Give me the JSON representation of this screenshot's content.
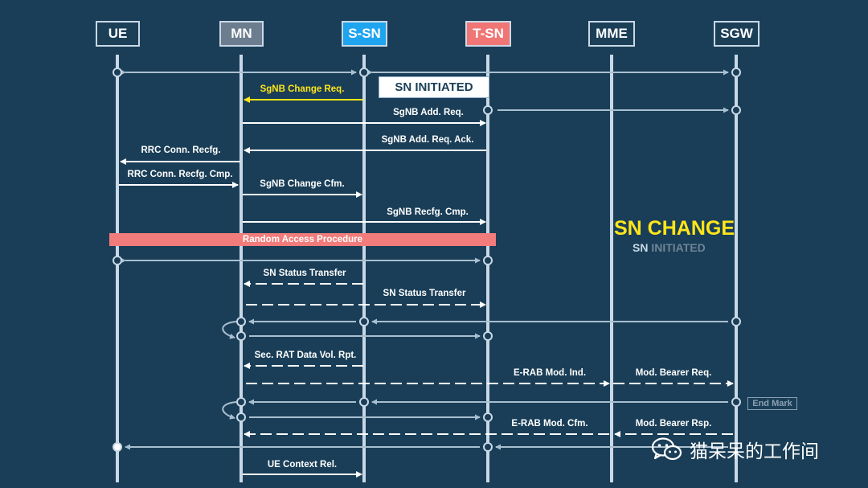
{
  "nodes": {
    "ue": "UE",
    "mn": "MN",
    "ssn": "S-SN",
    "tsn": "T-SN",
    "mme": "MME",
    "sgw": "SGW"
  },
  "colors": {
    "background": "#1a3e57",
    "ssn_box": "#1fa4f0",
    "tsn_box": "#f07575",
    "mn_box": "#6b7d8e",
    "highlight": "#ffe61a",
    "random_access": "#f27b7b",
    "user_plane": "#a9bfd0"
  },
  "badge": "SN INITIATED",
  "title": {
    "main": "SN CHANGE",
    "sub_sn": "SN",
    "sub_rest": " INITIATED"
  },
  "random_access": "Random Access Procedure",
  "end_mark": "End Mark",
  "watermark": "猫呆呆的工作间",
  "messages": {
    "sgnb_change_req": "SgNB Change Req.",
    "sgnb_add_req": "SgNB Add. Req.",
    "sgnb_add_req_ack": "SgNB Add. Req. Ack.",
    "rrc_conn_recfg": "RRC Conn. Recfg.",
    "rrc_conn_recfg_cmp": "RRC Conn. Recfg. Cmp.",
    "sgnb_change_cfm": "SgNB Change Cfm.",
    "sgnb_recfg_cmp": "SgNB Recfg. Cmp.",
    "sn_status_transfer_1": "SN Status Transfer",
    "sn_status_transfer_2": "SN Status Transfer",
    "sec_rat": "Sec. RAT Data Vol. Rpt.",
    "erab_mod_ind": "E-RAB Mod. Ind.",
    "mod_bearer_req": "Mod. Bearer Req.",
    "erab_mod_cfm": "E-RAB Mod. Cfm.",
    "mod_bearer_rsp": "Mod. Bearer Rsp.",
    "ue_context_rel": "UE Context Rel."
  }
}
